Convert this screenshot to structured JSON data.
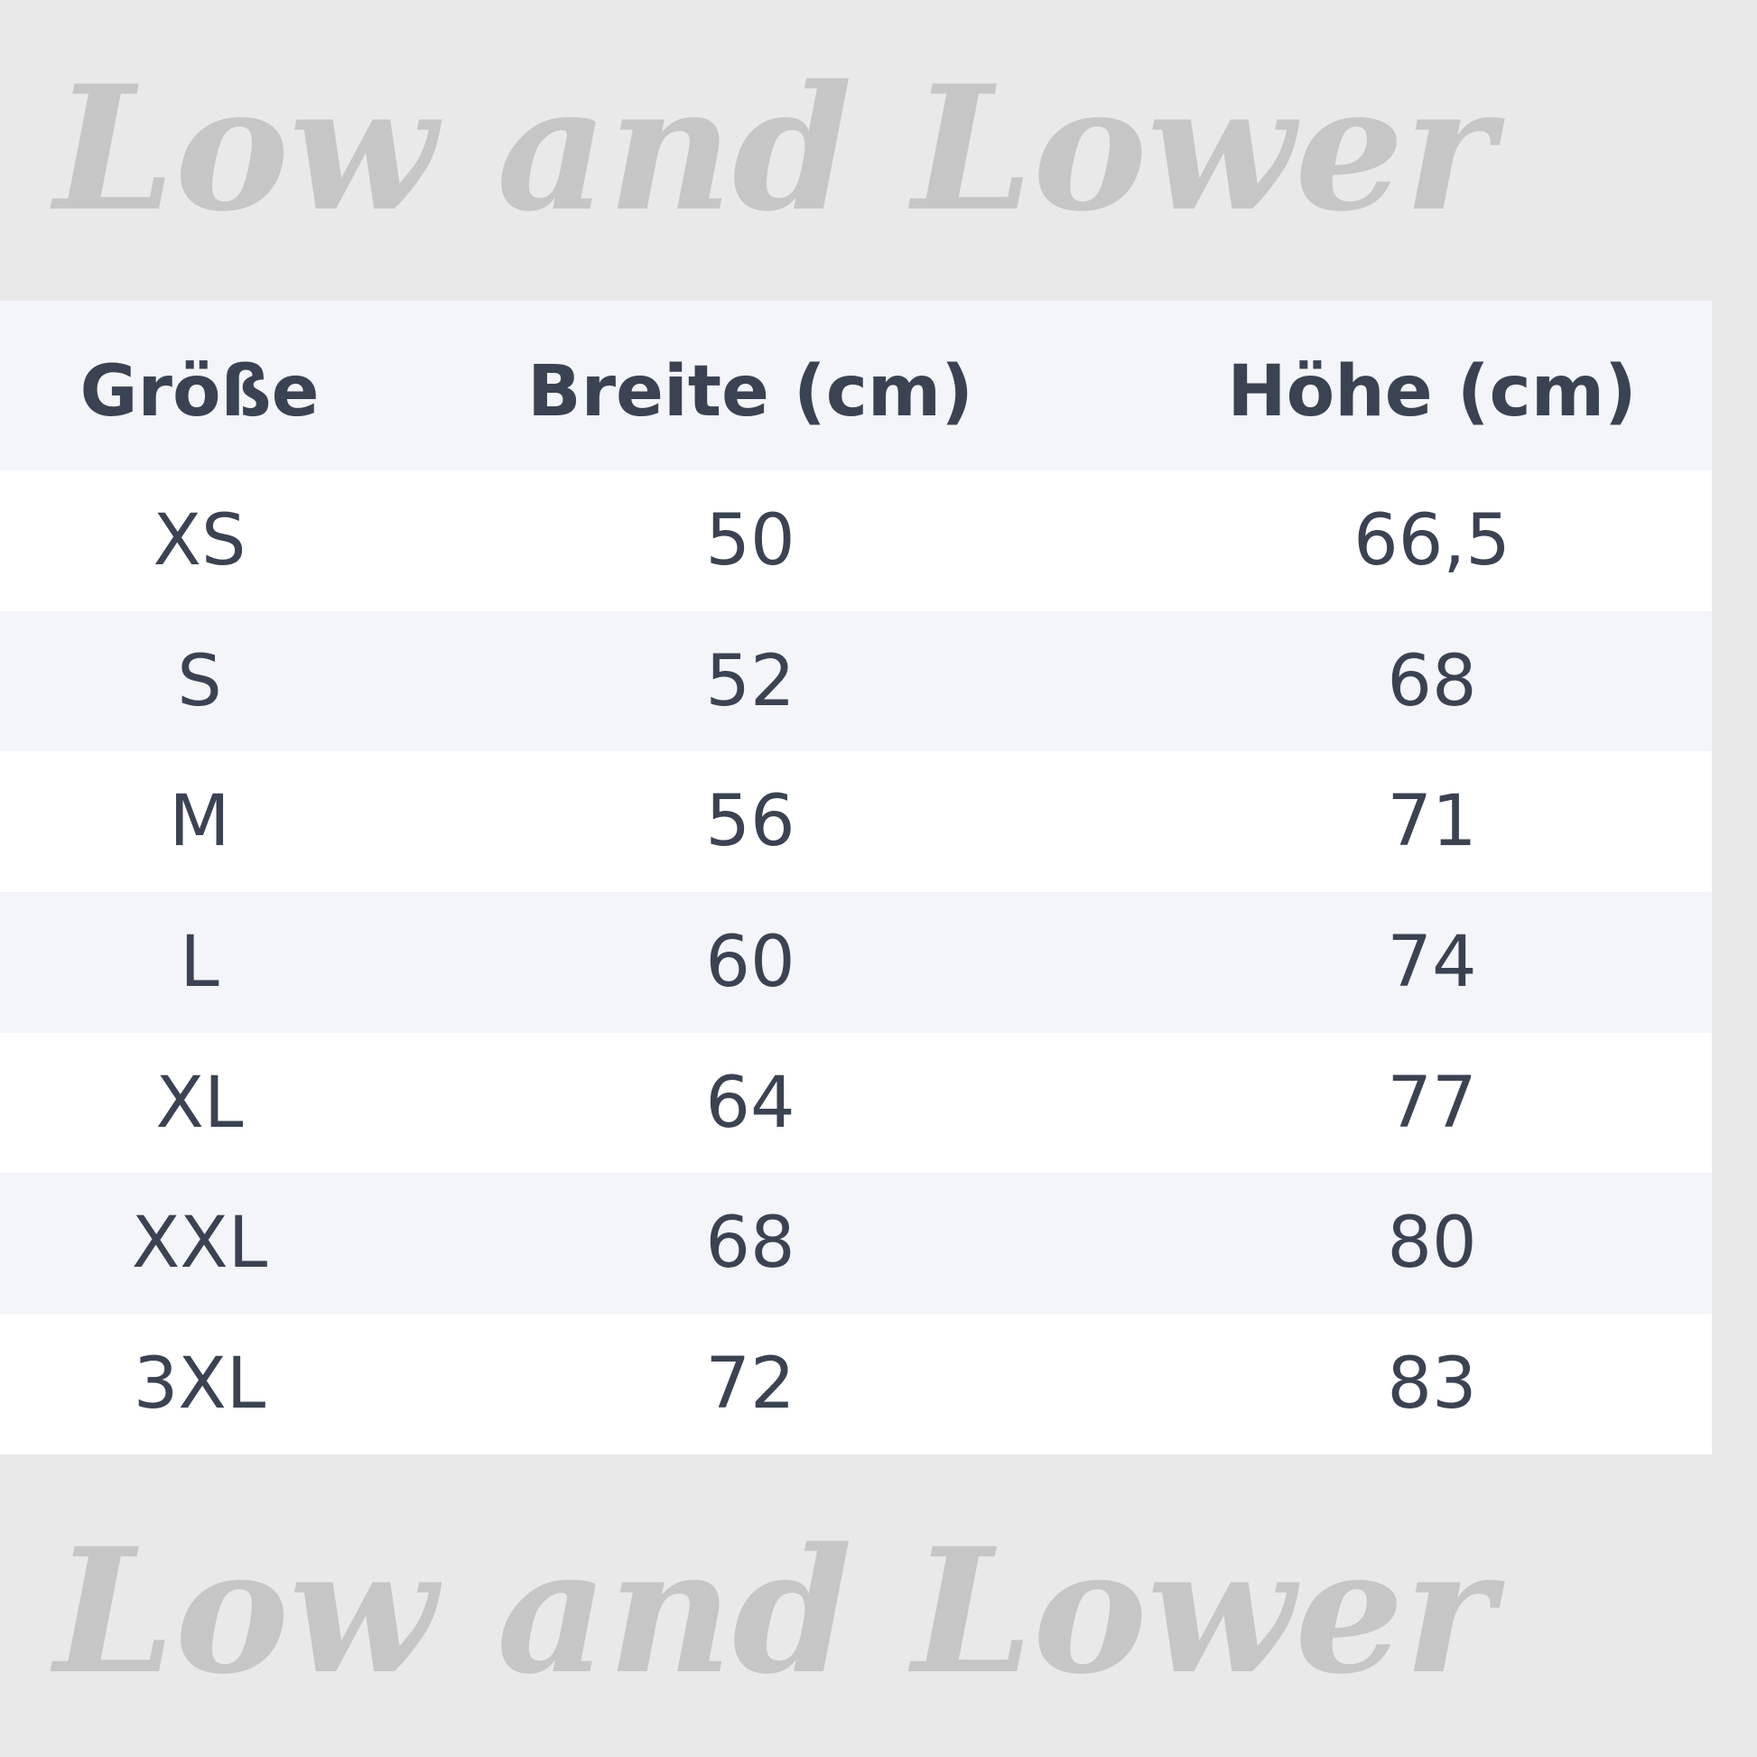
{
  "watermark": "Low and Lower",
  "table": {
    "headers": [
      "Größe",
      "Breite (cm)",
      "Höhe (cm)"
    ],
    "rows": [
      [
        "XS",
        "50",
        "66,5"
      ],
      [
        "S",
        "52",
        "68"
      ],
      [
        "M",
        "56",
        "71"
      ],
      [
        "L",
        "60",
        "74"
      ],
      [
        "XL",
        "64",
        "77"
      ],
      [
        "XXL",
        "68",
        "80"
      ],
      [
        "3XL",
        "72",
        "83"
      ]
    ]
  },
  "colors": {
    "background": "#e9e9ea",
    "watermark": "#c6c6c6",
    "text": "#3b4352",
    "header_bg": "#f3f5f8",
    "row_alt": "#ffffff"
  }
}
